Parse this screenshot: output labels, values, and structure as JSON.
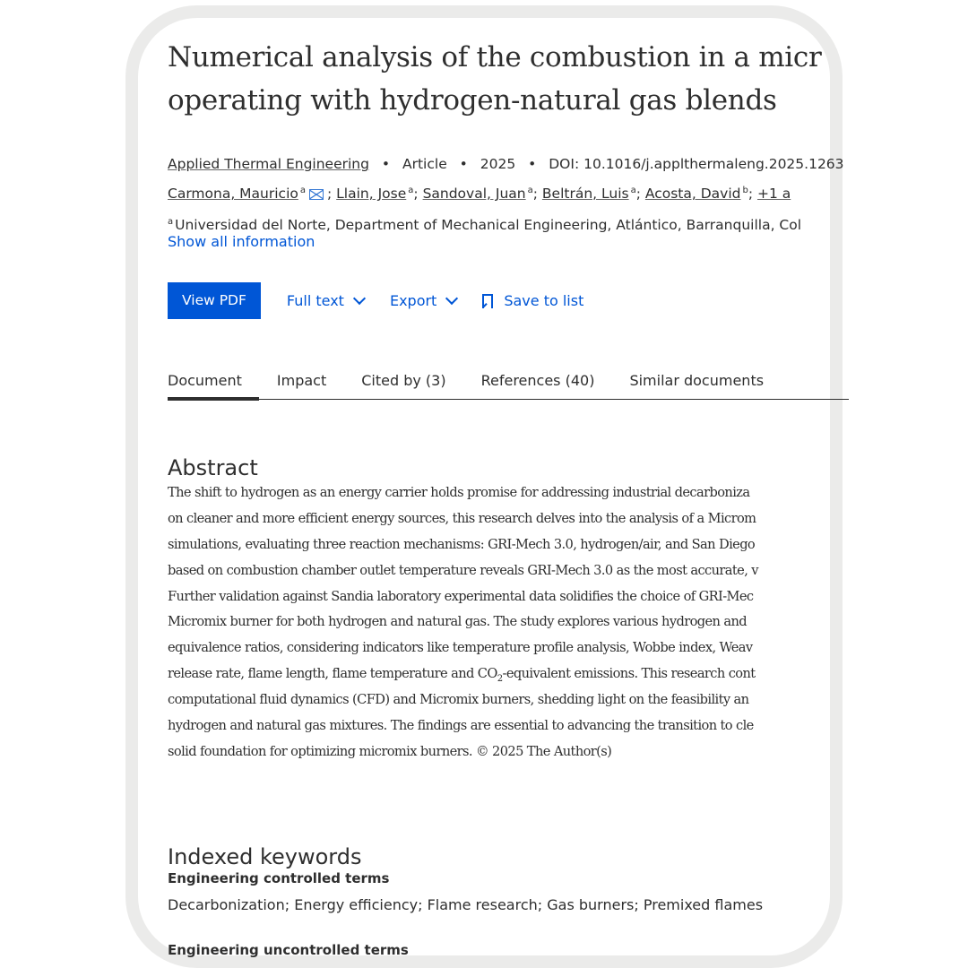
{
  "title_lines": [
    "Numerical analysis of the combustion in a micr",
    "operating with hydrogen-natural gas blends"
  ],
  "meta": {
    "journal": "Applied Thermal Engineering",
    "type": "Article",
    "year": "2025",
    "doi": "DOI: 10.1016/j.applthermaleng.2025.1263",
    "separator": "•"
  },
  "authors": [
    {
      "name": "Carmona, Mauricio",
      "aff": "a",
      "email": true
    },
    {
      "name": "Llain, Jose",
      "aff": "a"
    },
    {
      "name": "Sandoval, Juan",
      "aff": "a"
    },
    {
      "name": "Beltrán, Luis",
      "aff": "a"
    },
    {
      "name": "Acosta, David",
      "aff": "b"
    }
  ],
  "more_authors": "+1 a",
  "affiliation": {
    "mark": "a",
    "text": "Universidad del Norte, Department of Mechanical Engineering, Atlántico, Barranquilla, Col"
  },
  "show_all": "Show all information",
  "actions": {
    "view_pdf": "View PDF",
    "full_text": "Full text",
    "export": "Export",
    "save": "Save to list"
  },
  "tabs": [
    "Document",
    "Impact",
    "Cited by (3)",
    "References (40)",
    "Similar documents"
  ],
  "active_tab": "Document",
  "abstract": {
    "heading": "Abstract",
    "lines": [
      "The shift to hydrogen as an energy carrier holds promise for addressing industrial decarboniza",
      "on cleaner and more efficient energy sources, this research delves into the analysis of a Microm",
      "simulations, evaluating three reaction mechanisms: GRI-Mech 3.0, hydrogen/air, and San Diego",
      "based on combustion chamber outlet temperature reveals GRI-Mech 3.0 as the most accurate, v",
      "Further validation against Sandia laboratory experimental data solidifies the choice of GRI-Mec",
      "Micromix burner for both hydrogen and natural gas. The study explores various hydrogen and",
      "equivalence ratios, considering indicators like temperature profile analysis, Wobbe index, Weav",
      "release rate, flame length, flame temperature and CO",
      "computational fluid dynamics (CFD) and Micromix burners, shedding light on the feasibility an",
      "hydrogen and natural gas mixtures. The findings are essential to advancing the transition to cle",
      "solid foundation for optimizing micromix burners. © 2025 The Author(s)"
    ],
    "line8_sub": "2",
    "line8_rest": "-equivalent emissions. This research cont"
  },
  "keywords": {
    "heading": "Indexed keywords",
    "controlled_label": "Engineering controlled terms",
    "controlled_terms": "Decarbonization; Energy efficiency; Flame research; Gas burners; Premixed flames",
    "uncontrolled_label": "Engineering uncontrolled terms"
  },
  "colors": {
    "accent": "#0056d6",
    "text": "#2e2e2e",
    "frame": "#ebebea"
  }
}
